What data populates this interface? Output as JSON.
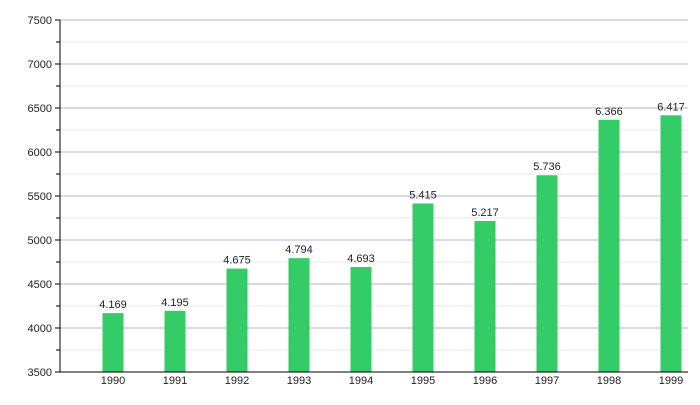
{
  "chart_data": {
    "type": "bar",
    "title": "",
    "xlabel": "",
    "ylabel": "",
    "categories": [
      "1990",
      "1991",
      "1992",
      "1993",
      "1994",
      "1995",
      "1996",
      "1997",
      "1998",
      "1999"
    ],
    "values": [
      4169,
      4195,
      4675,
      4794,
      4693,
      5415,
      5217,
      5736,
      6366,
      6417
    ],
    "value_labels": [
      "4.169",
      "4.195",
      "4.675",
      "4.794",
      "4.693",
      "5.415",
      "5.217",
      "5.736",
      "6.366",
      "6.417"
    ],
    "ylim": [
      3500,
      7500
    ],
    "yticks": [
      3500,
      4000,
      4500,
      5000,
      5500,
      6000,
      6500,
      7000,
      7500
    ],
    "ytick_labels": [
      "3500",
      "4000",
      "4500",
      "5000",
      "5500",
      "6000",
      "6500",
      "7000",
      "7500"
    ],
    "grid": true,
    "bar_color": "#33cc66",
    "grid_color": "#b3b3dd"
  }
}
